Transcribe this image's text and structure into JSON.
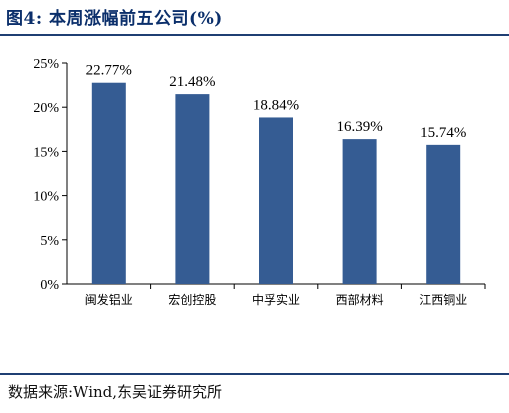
{
  "title": "图4:  本周涨幅前五公司(%)",
  "source": "数据来源:Wind,东吴证券研究所",
  "colors": {
    "bar": "#355c93",
    "title": "#0b2f6b",
    "rule": "#1f3f73"
  },
  "chart_data": {
    "type": "bar",
    "categories": [
      "闽发铝业",
      "宏创控股",
      "中孚实业",
      "西部材料",
      "江西铜业"
    ],
    "values": [
      22.77,
      21.48,
      18.84,
      16.39,
      15.74
    ],
    "value_labels": [
      "22.77%",
      "21.48%",
      "18.84%",
      "16.39%",
      "15.74%"
    ],
    "yticks": [
      0,
      5,
      10,
      15,
      20,
      25
    ],
    "ytick_labels": [
      "0%",
      "5%",
      "10%",
      "15%",
      "20%",
      "25%"
    ],
    "ylim": [
      0,
      25
    ],
    "grid": false,
    "legend": "none"
  }
}
